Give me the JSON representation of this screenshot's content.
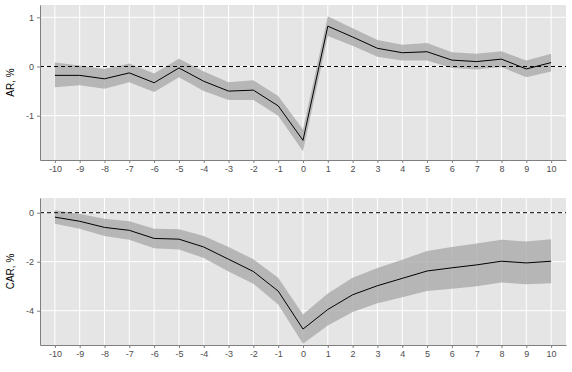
{
  "chart_data": [
    {
      "type": "line",
      "y_label": "AR, %",
      "color": "#000000",
      "grid": true,
      "x": [
        -10,
        -9,
        -8,
        -7,
        -6,
        -5,
        -4,
        -3,
        -2,
        -1,
        0,
        1,
        2,
        3,
        4,
        5,
        6,
        7,
        8,
        9,
        10
      ],
      "values": [
        -0.18,
        -0.18,
        -0.25,
        -0.13,
        -0.33,
        -0.03,
        -0.3,
        -0.5,
        -0.48,
        -0.8,
        -1.5,
        0.82,
        0.6,
        0.37,
        0.28,
        0.3,
        0.13,
        0.1,
        0.15,
        -0.05,
        0.08
      ],
      "lower": [
        -0.42,
        -0.38,
        -0.45,
        -0.32,
        -0.52,
        -0.22,
        -0.5,
        -0.68,
        -0.68,
        -1.0,
        -1.72,
        0.62,
        0.42,
        0.2,
        0.12,
        0.12,
        -0.03,
        -0.06,
        -0.01,
        -0.22,
        -0.1
      ],
      "upper": [
        0.08,
        0.02,
        -0.05,
        0.06,
        -0.14,
        0.16,
        -0.1,
        -0.32,
        -0.28,
        -0.6,
        -1.28,
        1.02,
        0.78,
        0.54,
        0.44,
        0.48,
        0.29,
        0.26,
        0.31,
        0.12,
        0.26
      ],
      "hline": 0,
      "xlim": [
        -10.6,
        10.6
      ],
      "xticks": [
        -10,
        -9,
        -8,
        -7,
        -6,
        -5,
        -4,
        -3,
        -2,
        -1,
        0,
        1,
        2,
        3,
        4,
        5,
        6,
        7,
        8,
        9,
        10
      ],
      "ylim": [
        -1.9,
        1.25
      ],
      "yticks": [
        -1,
        0,
        1
      ]
    },
    {
      "type": "line",
      "y_label": "CAR, %",
      "color": "#000000",
      "grid": true,
      "x": [
        -10,
        -9,
        -8,
        -7,
        -6,
        -5,
        -4,
        -3,
        -2,
        -1,
        0,
        1,
        2,
        3,
        4,
        5,
        6,
        7,
        8,
        9,
        10
      ],
      "values": [
        -0.18,
        -0.35,
        -0.6,
        -0.72,
        -1.05,
        -1.08,
        -1.4,
        -1.9,
        -2.4,
        -3.2,
        -4.75,
        -3.95,
        -3.35,
        -2.98,
        -2.68,
        -2.38,
        -2.25,
        -2.13,
        -1.98,
        -2.05,
        -1.98
      ],
      "lower": [
        -0.45,
        -0.65,
        -0.95,
        -1.1,
        -1.45,
        -1.5,
        -1.85,
        -2.4,
        -2.9,
        -3.75,
        -5.35,
        -4.6,
        -4.05,
        -3.7,
        -3.45,
        -3.2,
        -3.1,
        -3.0,
        -2.85,
        -2.92,
        -2.88
      ],
      "upper": [
        0.1,
        -0.05,
        -0.25,
        -0.35,
        -0.65,
        -0.68,
        -0.95,
        -1.4,
        -1.9,
        -2.65,
        -4.15,
        -3.3,
        -2.65,
        -2.26,
        -1.92,
        -1.56,
        -1.4,
        -1.26,
        -1.1,
        -1.18,
        -1.08
      ],
      "hline": 0,
      "xlim": [
        -10.6,
        10.6
      ],
      "xticks": [
        -10,
        -9,
        -8,
        -7,
        -6,
        -5,
        -4,
        -3,
        -2,
        -1,
        0,
        1,
        2,
        3,
        4,
        5,
        6,
        7,
        8,
        9,
        10
      ],
      "ylim": [
        -5.4,
        0.6
      ],
      "yticks": [
        -4,
        -2,
        0
      ]
    }
  ]
}
